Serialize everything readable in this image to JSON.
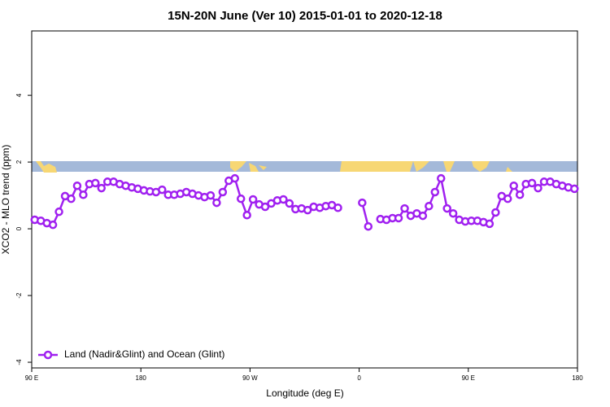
{
  "chart_data": {
    "type": "line",
    "title": "15N-20N June (Ver 10)   2015-01-01 to 2020-12-18",
    "x_label": "Longitude (deg E)",
    "y_label": "XCO2 - MLO trend (ppm)",
    "x": [
      92.5,
      97.5,
      102.5,
      107.5,
      112.5,
      117.5,
      122.5,
      127.5,
      132.5,
      137.5,
      142.5,
      147.5,
      152.5,
      157.5,
      162.5,
      167.5,
      172.5,
      177.5,
      182.5,
      187.5,
      192.5,
      197.5,
      202.5,
      207.5,
      212.5,
      217.5,
      222.5,
      227.5,
      232.5,
      237.5,
      242.5,
      247.5,
      252.5,
      257.5,
      262.5,
      267.5,
      272.5,
      277.5,
      282.5,
      287.5,
      292.5,
      297.5,
      302.5,
      307.5,
      312.5,
      317.5,
      322.5,
      327.5,
      332.5,
      337.5,
      342.5,
      347.5,
      352.5,
      357.5,
      362.5,
      367.5,
      372.5,
      377.5,
      382.5,
      387.5,
      392.5,
      397.5,
      402.5,
      407.5,
      412.5,
      417.5,
      422.5,
      427.5,
      432.5,
      437.5,
      442.5,
      447.5,
      452.5,
      457.5,
      462.5,
      467.5,
      472.5,
      477.5,
      482.5,
      487.5,
      492.5,
      497.5,
      502.5,
      507.5,
      512.5,
      517.5,
      522.5,
      527.5,
      532.5,
      537.5
    ],
    "series": [
      {
        "name": "Land (Nadir&Glint) and Ocean (Glint)",
        "color": "#a020f0",
        "values": [
          0.27,
          0.24,
          0.17,
          0.12,
          0.51,
          0.98,
          0.9,
          1.29,
          1.02,
          1.34,
          1.37,
          1.22,
          1.41,
          1.41,
          1.34,
          1.29,
          1.24,
          1.2,
          1.15,
          1.12,
          1.1,
          1.17,
          1.02,
          1.02,
          1.05,
          1.1,
          1.05,
          1.0,
          0.95,
          1.0,
          0.78,
          1.1,
          1.44,
          1.51,
          0.9,
          0.41,
          0.88,
          0.73,
          0.66,
          0.76,
          0.85,
          0.88,
          0.76,
          0.59,
          0.61,
          0.56,
          0.66,
          0.63,
          0.68,
          0.71,
          0.63,
          null,
          null,
          null,
          0.78,
          0.07,
          null,
          0.29,
          0.27,
          0.32,
          0.32,
          0.61,
          0.39,
          0.46,
          0.39,
          0.68,
          1.1,
          1.51,
          0.61,
          0.46,
          0.27,
          0.22,
          0.24,
          0.24,
          0.2,
          0.15,
          0.49,
          0.98,
          0.9,
          1.29,
          1.02,
          1.34,
          1.37,
          1.22,
          1.41,
          1.41,
          1.34,
          1.29,
          1.24,
          1.2
        ]
      }
    ],
    "xlim": [
      90,
      540
    ],
    "xticks": [
      {
        "value": 90,
        "label": "90 E"
      },
      180,
      {
        "value": 270,
        "label": "90 W"
      },
      {
        "value": 360,
        "label": "0"
      },
      {
        "value": 450,
        "label": "90 E"
      },
      {
        "value": 540,
        "label": "180"
      }
    ],
    "ylim": [
      -4.17,
      5.93
    ],
    "yticks": [
      -4,
      -2,
      0,
      2,
      4
    ],
    "legend": "bottom-left"
  }
}
